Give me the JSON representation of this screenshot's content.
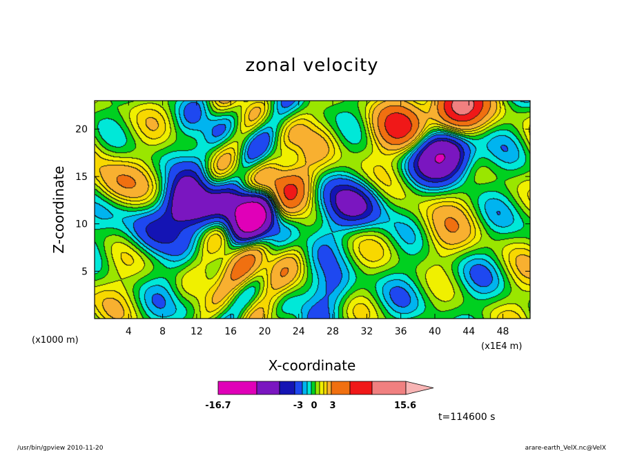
{
  "page": {
    "time_label": "t=114600 s",
    "footer_left": "/usr/bin/gpview  2010-11-20",
    "footer_right": "arare-earth_VelX.nc@VelX"
  },
  "chart_data": {
    "type": "heatmap",
    "title": "zonal velocity",
    "xlabel": "X-coordinate",
    "ylabel": "Z-coordinate",
    "x_unit": "(x1E4 m)",
    "y_unit": "(x1000 m)",
    "xlim": [
      0,
      51.2
    ],
    "ylim": [
      0,
      23
    ],
    "x_ticks": [
      "4",
      "8",
      "12",
      "16",
      "20",
      "24",
      "28",
      "32",
      "36",
      "40",
      "44",
      "48"
    ],
    "x_tick_values": [
      4,
      8,
      12,
      16,
      20,
      24,
      28,
      32,
      36,
      40,
      44,
      48
    ],
    "y_ticks": [
      "5",
      "10",
      "15",
      "20"
    ],
    "y_tick_values": [
      5,
      10,
      15,
      20
    ],
    "colorbar": {
      "labels": [
        "-16.7",
        "-3",
        "0",
        "3",
        "15.6"
      ],
      "min": -16.7,
      "max": 15.6,
      "colors": [
        "#e000b8",
        "#7a16c0",
        "#1414b4",
        "#1e48f0",
        "#00b4f0",
        "#00e8d8",
        "#00d020",
        "#9ae600",
        "#f0f000",
        "#f8d800",
        "#f8b030",
        "#f07010",
        "#f01818",
        "#f08080",
        "#f8b4b4"
      ]
    },
    "features": [
      {
        "x": 41.2,
        "z": 17.3,
        "value": -12
      },
      {
        "x": 42.5,
        "z": 22,
        "value": 13
      },
      {
        "x": 18,
        "z": 11,
        "value": -16
      },
      {
        "x": 11.5,
        "z": 12,
        "value": -12
      },
      {
        "x": 17,
        "z": 5,
        "value": 8
      },
      {
        "x": 22,
        "z": 14,
        "value": 8
      },
      {
        "x": 36,
        "z": 20,
        "value": 8
      },
      {
        "x": 31,
        "z": 12,
        "value": -6
      },
      {
        "x": 41,
        "z": 8,
        "value": 2
      },
      {
        "x": 28,
        "z": 3,
        "value": -5
      },
      {
        "x": 2,
        "z": 14,
        "value": 5
      },
      {
        "x": 6,
        "z": 9,
        "value": -4
      }
    ]
  }
}
